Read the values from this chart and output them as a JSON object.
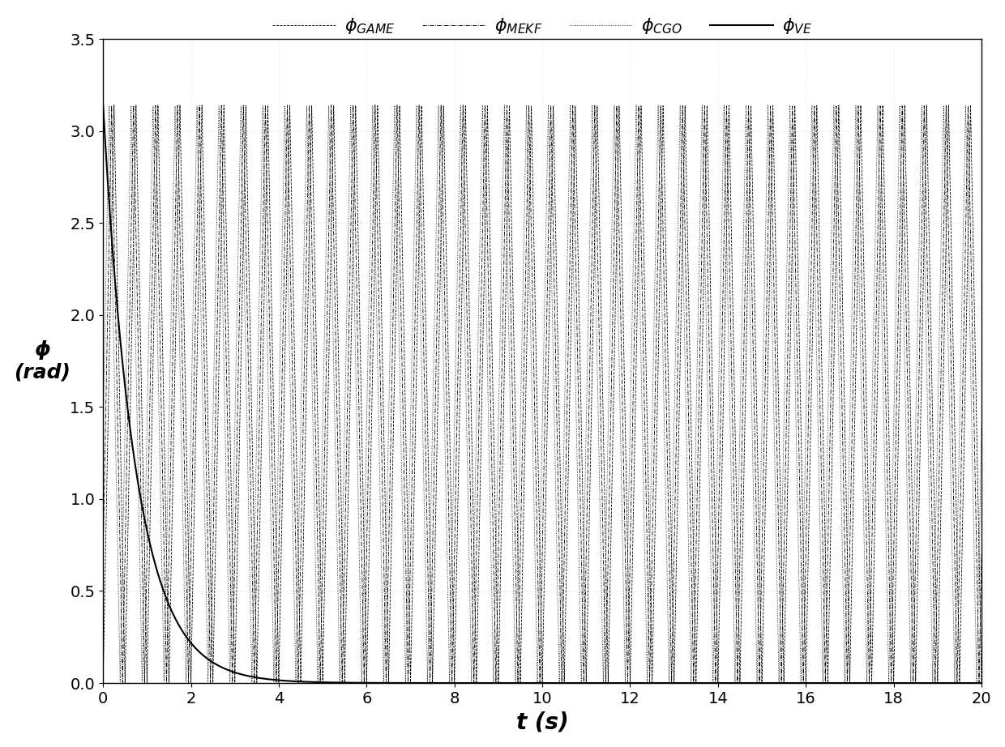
{
  "xlabel": "t (s)",
  "ylabel_line1": "ϕ",
  "ylabel_line2": "(rad)",
  "xlim": [
    0,
    20
  ],
  "ylim": [
    0,
    3.5
  ],
  "xticks": [
    0,
    2,
    4,
    6,
    8,
    10,
    12,
    14,
    16,
    18,
    20
  ],
  "yticks": [
    0,
    0.5,
    1,
    1.5,
    2,
    2.5,
    3,
    3.5
  ],
  "line_color": "#000000",
  "lw_osc": 0.6,
  "lw_ve": 1.5,
  "background_color": "#ffffff",
  "t_max": 20.0,
  "n_points": 20000,
  "pi": 3.14159265358979,
  "freq_main": 2.0,
  "decay_tau": 0.75,
  "legend_fontsize": 16,
  "tick_fontsize": 14,
  "xlabel_fontsize": 20,
  "ylabel_fontsize": 18
}
